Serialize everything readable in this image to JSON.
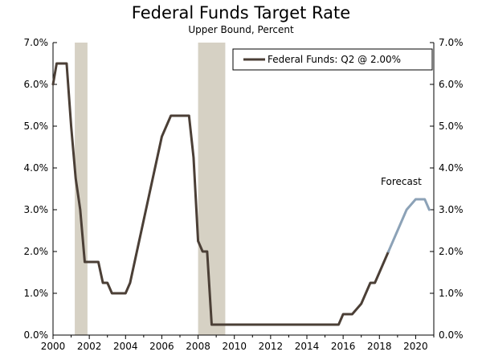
{
  "chart_data": {
    "type": "line",
    "title": "Federal Funds Target Rate",
    "subtitle": "Upper Bound, Percent",
    "ylim": [
      0,
      7
    ],
    "xlim": [
      2000,
      2021
    ],
    "y_ticks": [
      "0.0%",
      "1.0%",
      "2.0%",
      "3.0%",
      "4.0%",
      "5.0%",
      "6.0%",
      "7.0%"
    ],
    "y_tick_values": [
      0,
      1,
      2,
      3,
      4,
      5,
      6,
      7
    ],
    "x_ticks": [
      "2000",
      "2002",
      "2004",
      "2006",
      "2008",
      "2010",
      "2012",
      "2014",
      "2016",
      "2018",
      "2020"
    ],
    "x_tick_values": [
      2000,
      2002,
      2004,
      2006,
      2008,
      2010,
      2012,
      2014,
      2016,
      2018,
      2020
    ],
    "recessions": [
      {
        "start": 2001.2,
        "end": 2001.9
      },
      {
        "start": 2008.0,
        "end": 2009.5
      }
    ],
    "legend": {
      "label": "Federal Funds: Q2 @ 2.00%",
      "position": "top-right"
    },
    "annotation": {
      "text": "Forecast"
    },
    "series": [
      {
        "name": "Federal Funds",
        "color": "#4b3f36",
        "x": [
          2000.0,
          2000.2,
          2000.5,
          2000.75,
          2001.0,
          2001.25,
          2001.5,
          2001.75,
          2002.0,
          2002.5,
          2002.75,
          2003.0,
          2003.25,
          2003.5,
          2004.0,
          2004.25,
          2004.5,
          2004.75,
          2005.0,
          2005.5,
          2006.0,
          2006.5,
          2007.0,
          2007.25,
          2007.5,
          2007.75,
          2008.0,
          2008.25,
          2008.5,
          2008.75,
          2009.0,
          2010.0,
          2012.0,
          2014.0,
          2015.75,
          2016.0,
          2016.5,
          2017.0,
          2017.5,
          2017.75,
          2018.0,
          2018.5
        ],
        "values": [
          6.0,
          6.5,
          6.5,
          6.5,
          5.0,
          3.75,
          3.0,
          1.75,
          1.75,
          1.75,
          1.25,
          1.25,
          1.0,
          1.0,
          1.0,
          1.25,
          1.75,
          2.25,
          2.75,
          3.75,
          4.75,
          5.25,
          5.25,
          5.25,
          5.25,
          4.25,
          2.25,
          2.0,
          2.0,
          0.25,
          0.25,
          0.25,
          0.25,
          0.25,
          0.25,
          0.5,
          0.5,
          0.75,
          1.25,
          1.25,
          1.5,
          2.0
        ]
      },
      {
        "name": "Forecast",
        "color": "#8ca2b7",
        "x": [
          2018.5,
          2019.0,
          2019.5,
          2020.0,
          2020.5,
          2020.75
        ],
        "values": [
          2.0,
          2.5,
          3.0,
          3.25,
          3.25,
          3.0
        ]
      }
    ]
  }
}
